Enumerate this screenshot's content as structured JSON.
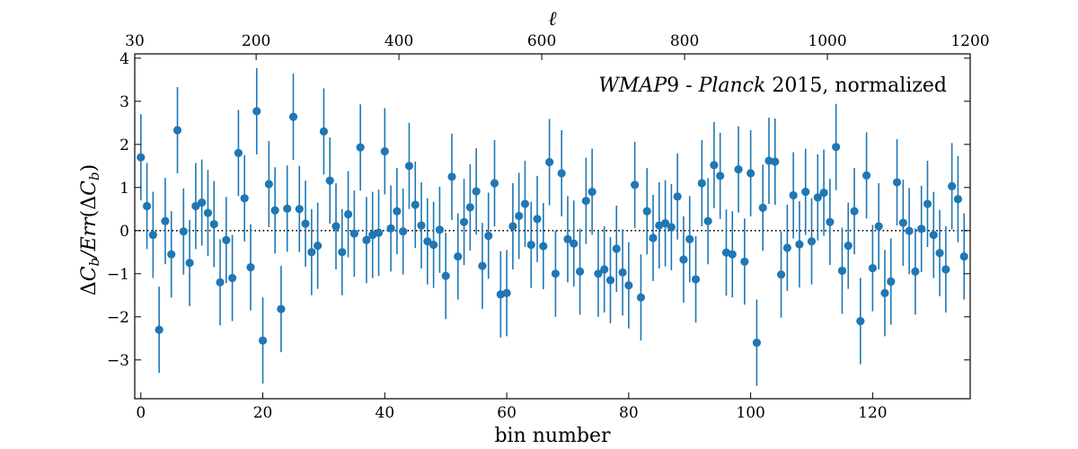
{
  "chart_data": {
    "type": "scatter",
    "title": "",
    "annotation": {
      "parts": [
        {
          "text": "WMAP",
          "style": "italic"
        },
        {
          "text": "9 - ",
          "style": "normal"
        },
        {
          "text": "Planck",
          "style": "italic"
        },
        {
          "text": " 2015, normalized",
          "style": "normal"
        }
      ],
      "placement": "top-right"
    },
    "xlabel": "bin number",
    "ylabel": "ΔC_b/Err(ΔC_b)",
    "top_xlabel": "ℓ",
    "xlim": [
      -1,
      136
    ],
    "ylim": [
      -3.9,
      4.1
    ],
    "top_xlim": [
      30,
      1200
    ],
    "x_ticks": [
      0,
      20,
      40,
      60,
      80,
      100,
      120
    ],
    "y_ticks": [
      -3,
      -2,
      -1,
      0,
      1,
      2,
      3,
      4
    ],
    "top_ticks": [
      30,
      200,
      400,
      600,
      800,
      1000,
      1200
    ],
    "reference_line": {
      "y": 0,
      "style": "dotted",
      "color": "#000000"
    },
    "series": [
      {
        "name": "WMAP9 - Planck 2015, normalized",
        "color": "#1f77b4",
        "error": 1.0,
        "x": [
          0,
          1,
          2,
          3,
          4,
          5,
          6,
          7,
          8,
          9,
          10,
          11,
          12,
          13,
          14,
          15,
          16,
          17,
          18,
          19,
          20,
          21,
          22,
          23,
          24,
          25,
          26,
          27,
          28,
          29,
          30,
          31,
          32,
          33,
          34,
          35,
          36,
          37,
          38,
          39,
          40,
          41,
          42,
          43,
          44,
          45,
          46,
          47,
          48,
          49,
          50,
          51,
          52,
          53,
          54,
          55,
          56,
          57,
          58,
          59,
          60,
          61,
          62,
          63,
          64,
          65,
          66,
          67,
          68,
          69,
          70,
          71,
          72,
          73,
          74,
          75,
          76,
          77,
          78,
          79,
          80,
          81,
          82,
          83,
          84,
          85,
          86,
          87,
          88,
          89,
          90,
          91,
          92,
          93,
          94,
          95,
          96,
          97,
          98,
          99,
          100,
          101,
          102,
          103,
          104,
          105,
          106,
          107,
          108,
          109,
          110,
          111,
          112,
          113,
          114,
          115,
          116,
          117,
          118,
          119,
          120,
          121,
          122,
          123,
          124,
          125,
          126,
          127,
          128,
          129,
          130,
          131,
          132,
          133,
          134,
          135
        ],
        "y": [
          1.7,
          0.57,
          -0.1,
          -2.3,
          0.22,
          -0.55,
          2.33,
          -0.02,
          -0.75,
          0.57,
          0.65,
          0.41,
          0.15,
          -1.2,
          -0.22,
          -1.1,
          1.8,
          0.75,
          -0.85,
          2.77,
          -2.55,
          1.08,
          0.47,
          -1.82,
          0.51,
          2.64,
          0.5,
          0.16,
          -0.5,
          -0.35,
          2.3,
          1.16,
          0.1,
          -0.5,
          0.38,
          -0.07,
          1.93,
          -0.22,
          -0.1,
          -0.05,
          1.84,
          0.05,
          0.45,
          -0.02,
          1.5,
          0.6,
          0.12,
          -0.25,
          -0.33,
          0.02,
          -1.05,
          1.25,
          -0.6,
          0.2,
          0.54,
          0.91,
          -0.82,
          -0.12,
          1.1,
          -1.48,
          -1.45,
          0.1,
          0.34,
          0.62,
          -0.33,
          0.27,
          -0.36,
          1.59,
          -1.0,
          1.33,
          -0.2,
          -0.3,
          -0.95,
          0.69,
          0.9,
          -1.0,
          -0.9,
          -1.15,
          -0.42,
          -0.97,
          -1.27,
          1.06,
          -1.55,
          0.45,
          -0.17,
          0.12,
          0.17,
          0.08,
          0.79,
          -0.67,
          -0.2,
          -1.13,
          1.1,
          0.22,
          1.52,
          1.27,
          -0.51,
          -0.55,
          1.42,
          -0.72,
          1.33,
          -2.6,
          0.53,
          1.62,
          1.6,
          -1.02,
          -0.4,
          0.82,
          -0.32,
          0.9,
          -0.25,
          0.77,
          0.88,
          0.2,
          1.94,
          -0.93,
          -0.35,
          0.45,
          -2.1,
          1.28,
          -0.87,
          0.1,
          -1.45,
          -1.18,
          1.12,
          0.18,
          -0.01,
          -0.95,
          0.04,
          0.62,
          -0.1,
          -0.52,
          -0.9,
          1.03,
          0.73,
          -0.6
        ]
      }
    ]
  }
}
